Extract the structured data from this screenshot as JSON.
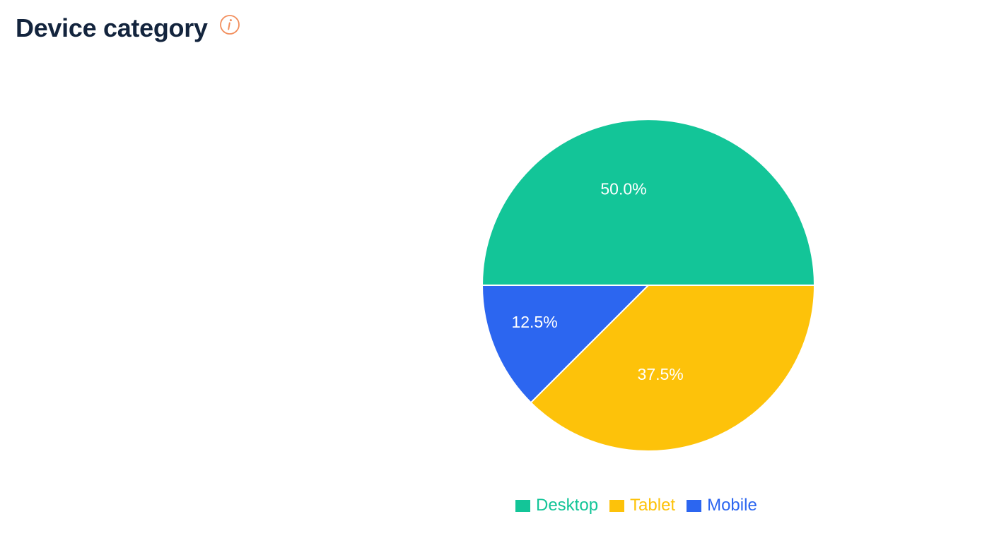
{
  "header": {
    "title": "Device category",
    "info_icon": "info-icon",
    "info_icon_color": "#f28e5c"
  },
  "chart_data": {
    "type": "pie",
    "title": "Device category",
    "slices": [
      {
        "name": "Desktop",
        "value": 50.0,
        "label": "50.0%",
        "color": "#13c598"
      },
      {
        "name": "Tablet",
        "value": 37.5,
        "label": "37.5%",
        "color": "#fdc20a"
      },
      {
        "name": "Mobile",
        "value": 12.5,
        "label": "12.5%",
        "color": "#2c66f0"
      }
    ],
    "legend": {
      "position": "bottom",
      "entries": [
        "Desktop",
        "Tablet",
        "Mobile"
      ]
    }
  }
}
